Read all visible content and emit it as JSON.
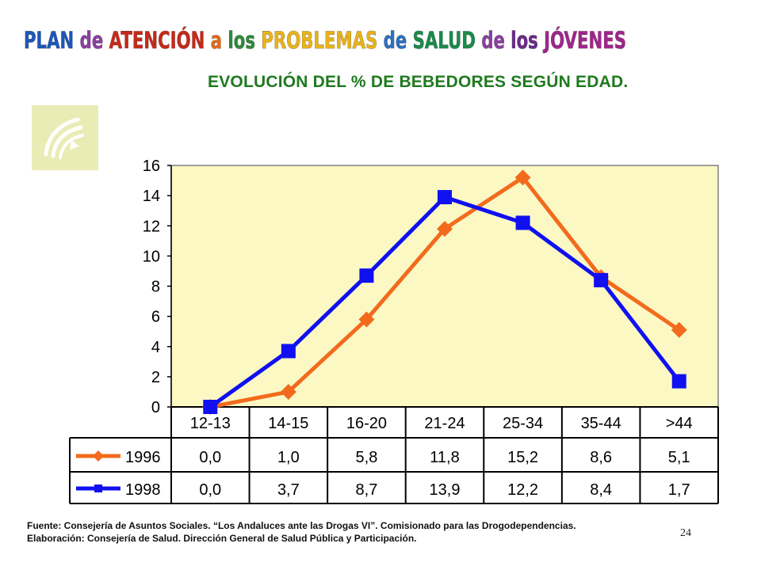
{
  "header": {
    "title": "PLAN de ATENCIÓN a los PROBLEMAS de SALUD de los JÓVENES",
    "title_words": [
      {
        "text": "PLAN",
        "color": "#1e56b8"
      },
      {
        "text": "de",
        "color": "#8a3fa0"
      },
      {
        "text": "ATENCIÓN",
        "color": "#c42a1a"
      },
      {
        "text": "a",
        "color": "#e06a1a"
      },
      {
        "text": "los",
        "color": "#2d8a3a"
      },
      {
        "text": "PROBLEMAS",
        "color": "#e8b21a"
      },
      {
        "text": "de",
        "color": "#2c6fc0"
      },
      {
        "text": "SALUD",
        "color": "#1a8a4a"
      },
      {
        "text": "de",
        "color": "#8a3fa0"
      },
      {
        "text": "los",
        "color": "#6a2a8a"
      },
      {
        "text": "JÓVENES",
        "color": "#a0268a"
      }
    ],
    "subtitle": "EVOLUCIÓN DEL % DE BEBEDORES SEGÚN EDAD."
  },
  "logo": {
    "icon": "junta-andalucia-logo-icon"
  },
  "chart_data": {
    "type": "line",
    "categories": [
      "12-13",
      "14-15",
      "16-20",
      "21-24",
      "25-34",
      "35-44",
      ">44"
    ],
    "series": [
      {
        "name": "1996",
        "values": [
          0.0,
          1.0,
          5.8,
          11.8,
          15.2,
          8.6,
          5.1
        ],
        "labels": [
          "0,0",
          "1,0",
          "5,8",
          "11,8",
          "15,2",
          "8,6",
          "5,1"
        ],
        "color": "#f26b1d",
        "marker": "diamond"
      },
      {
        "name": "1998",
        "values": [
          0.0,
          3.7,
          8.7,
          13.9,
          12.2,
          8.4,
          1.7
        ],
        "labels": [
          "0,0",
          "3,7",
          "8,7",
          "13,9",
          "12,2",
          "8,4",
          "1,7"
        ],
        "color": "#1010f0",
        "marker": "square"
      }
    ],
    "yticks": [
      "0",
      "2",
      "4",
      "6",
      "8",
      "10",
      "12",
      "14",
      "16"
    ],
    "ylim": [
      0,
      16
    ],
    "plot_background": "#fbf8c4",
    "data_table": true
  },
  "footer": {
    "source": "Fuente: Consejería de Asuntos Sociales. “Los Andaluces ante las Drogas VI”. Comisionado para las Drogodependencias.",
    "elaboration": "Elaboración: Consejería de Salud. Dirección General de Salud Pública y Participación."
  },
  "page_number": "24"
}
